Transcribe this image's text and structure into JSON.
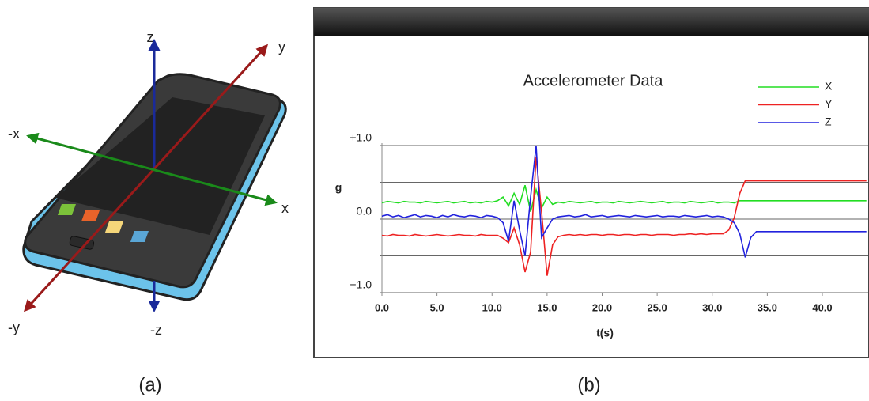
{
  "figure_a": {
    "caption": "(a)",
    "axis_labels": {
      "z": "z",
      "minus_z": "-z",
      "y": "y",
      "minus_y": "-y",
      "x": "x",
      "minus_x": "-x"
    }
  },
  "figure_b": {
    "caption": "(b)"
  },
  "chart_data": {
    "type": "line",
    "title": "Accelerometer Data",
    "x_label": "t(s)",
    "y_label": "g",
    "x": [
      0,
      0.5,
      1,
      1.5,
      2,
      2.5,
      3,
      3.5,
      4,
      4.5,
      5,
      5.5,
      6,
      6.5,
      7,
      7.5,
      8,
      8.5,
      9,
      9.5,
      10,
      10.5,
      11,
      11.5,
      12,
      12.5,
      13,
      13.5,
      14,
      14.5,
      15,
      15.5,
      16,
      16.5,
      17,
      17.5,
      18,
      18.5,
      19,
      19.5,
      20,
      20.5,
      21,
      21.5,
      22,
      22.5,
      23,
      23.5,
      24,
      24.5,
      25,
      25.5,
      26,
      26.5,
      27,
      27.5,
      28,
      28.5,
      29,
      29.5,
      30,
      30.5,
      31,
      31.5,
      32,
      32.5,
      33,
      33.5,
      34,
      34.5,
      35,
      35.5,
      36,
      36.5,
      37,
      37.5,
      38,
      38.5,
      39,
      39.5,
      40,
      40.5,
      41,
      41.5,
      42,
      42.5,
      43,
      43.5,
      44
    ],
    "series": [
      {
        "name": "X",
        "color": "#22dd22",
        "values": [
          0.22,
          0.24,
          0.23,
          0.22,
          0.24,
          0.23,
          0.23,
          0.22,
          0.24,
          0.23,
          0.22,
          0.23,
          0.24,
          0.22,
          0.23,
          0.24,
          0.22,
          0.23,
          0.22,
          0.24,
          0.23,
          0.25,
          0.3,
          0.18,
          0.35,
          0.2,
          0.46,
          0.1,
          0.4,
          0.15,
          0.3,
          0.2,
          0.23,
          0.22,
          0.24,
          0.23,
          0.22,
          0.23,
          0.24,
          0.22,
          0.23,
          0.23,
          0.22,
          0.24,
          0.23,
          0.22,
          0.23,
          0.24,
          0.23,
          0.22,
          0.23,
          0.24,
          0.22,
          0.23,
          0.23,
          0.22,
          0.24,
          0.23,
          0.22,
          0.23,
          0.24,
          0.22,
          0.23,
          0.23,
          0.22,
          0.25,
          0.25,
          0.25,
          0.25,
          0.25,
          0.25,
          0.25,
          0.25,
          0.25,
          0.25,
          0.25,
          0.25,
          0.25,
          0.25,
          0.25,
          0.25,
          0.25,
          0.25,
          0.25,
          0.25,
          0.25,
          0.25,
          0.25,
          0.25
        ]
      },
      {
        "name": "Y",
        "color": "#ee2222",
        "values": [
          -0.22,
          -0.23,
          -0.21,
          -0.22,
          -0.22,
          -0.23,
          -0.21,
          -0.22,
          -0.23,
          -0.22,
          -0.21,
          -0.22,
          -0.23,
          -0.22,
          -0.21,
          -0.22,
          -0.22,
          -0.23,
          -0.21,
          -0.22,
          -0.22,
          -0.22,
          -0.26,
          -0.32,
          -0.12,
          -0.35,
          -0.72,
          -0.45,
          0.85,
          0.1,
          -0.77,
          -0.35,
          -0.24,
          -0.22,
          -0.21,
          -0.22,
          -0.21,
          -0.22,
          -0.21,
          -0.21,
          -0.22,
          -0.21,
          -0.21,
          -0.22,
          -0.21,
          -0.21,
          -0.22,
          -0.21,
          -0.21,
          -0.22,
          -0.21,
          -0.21,
          -0.21,
          -0.22,
          -0.21,
          -0.21,
          -0.2,
          -0.21,
          -0.2,
          -0.21,
          -0.2,
          -0.2,
          -0.2,
          -0.15,
          0.02,
          0.35,
          0.52,
          0.52,
          0.52,
          0.52,
          0.52,
          0.52,
          0.52,
          0.52,
          0.52,
          0.52,
          0.52,
          0.52,
          0.52,
          0.52,
          0.52,
          0.52,
          0.52,
          0.52,
          0.52,
          0.52,
          0.52,
          0.52,
          0.52
        ]
      },
      {
        "name": "Z",
        "color": "#2222dd",
        "values": [
          0.04,
          0.06,
          0.03,
          0.05,
          0.02,
          0.04,
          0.06,
          0.03,
          0.05,
          0.04,
          0.02,
          0.05,
          0.03,
          0.06,
          0.04,
          0.03,
          0.05,
          0.04,
          0.02,
          0.05,
          0.04,
          0.02,
          -0.05,
          -0.3,
          0.25,
          -0.15,
          -0.5,
          0.3,
          1.0,
          -0.25,
          -0.12,
          0.0,
          0.03,
          0.04,
          0.05,
          0.03,
          0.04,
          0.06,
          0.03,
          0.04,
          0.05,
          0.03,
          0.04,
          0.05,
          0.04,
          0.03,
          0.05,
          0.04,
          0.03,
          0.04,
          0.05,
          0.03,
          0.04,
          0.04,
          0.03,
          0.05,
          0.04,
          0.03,
          0.04,
          0.05,
          0.03,
          0.04,
          0.03,
          0.0,
          -0.05,
          -0.2,
          -0.52,
          -0.25,
          -0.17,
          -0.17,
          -0.17,
          -0.17,
          -0.17,
          -0.17,
          -0.17,
          -0.17,
          -0.17,
          -0.17,
          -0.17,
          -0.17,
          -0.17,
          -0.17,
          -0.17,
          -0.17,
          -0.17,
          -0.17,
          -0.17,
          -0.17,
          -0.17
        ]
      }
    ],
    "xlim": [
      0,
      44
    ],
    "ylim": [
      -1,
      1.3
    ],
    "xticks": [
      {
        "value": 0,
        "label": "0.0"
      },
      {
        "value": 5,
        "label": "5.0"
      },
      {
        "value": 10,
        "label": "10.0"
      },
      {
        "value": 15,
        "label": "15.0"
      },
      {
        "value": 20,
        "label": "20.0"
      },
      {
        "value": 25,
        "label": "25.0"
      },
      {
        "value": 30,
        "label": "30.0"
      },
      {
        "value": 35,
        "label": "35.0"
      },
      {
        "value": 40,
        "label": "40.0"
      }
    ],
    "yticks": [
      {
        "value": 1,
        "label": "+1.0"
      },
      {
        "value": 0,
        "label": "0.0"
      },
      {
        "value": -1,
        "label": "−1.0"
      }
    ],
    "minor_yticks": [
      0.5,
      -0.5
    ],
    "grid": true,
    "legend": "top-right"
  }
}
